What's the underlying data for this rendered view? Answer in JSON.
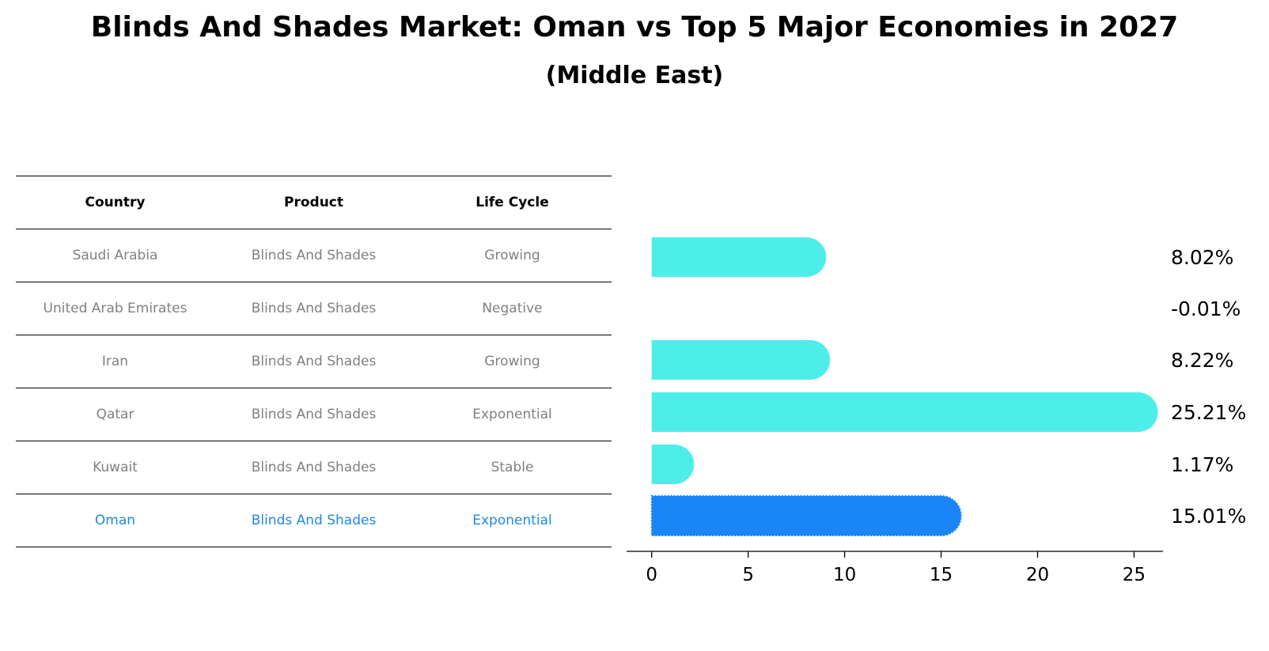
{
  "title": "Blinds And Shades Market: Oman vs Top 5 Major Economies in 2027",
  "subtitle": "(Middle East)",
  "table": {
    "headers": [
      "Country",
      "Product",
      "Life Cycle"
    ],
    "rows": [
      [
        "Saudi Arabia",
        "Blinds And Shades",
        "Growing"
      ],
      [
        "United Arab Emirates",
        "Blinds And Shades",
        "Negative"
      ],
      [
        "Iran",
        "Blinds And Shades",
        "Growing"
      ],
      [
        "Qatar",
        "Blinds And Shades",
        "Exponential"
      ],
      [
        "Kuwait",
        "Blinds And Shades",
        "Stable"
      ],
      [
        "Oman",
        "Blinds And Shades",
        "Exponential"
      ]
    ]
  },
  "chart_data": {
    "type": "bar",
    "orientation": "horizontal",
    "categories": [
      "Saudi Arabia",
      "United Arab Emirates",
      "Iran",
      "Qatar",
      "Kuwait",
      "Oman"
    ],
    "values": [
      8.02,
      -0.01,
      8.22,
      25.21,
      1.17,
      15.01
    ],
    "value_labels": [
      "8.02%",
      "-0.01%",
      "8.22%",
      "25.21%",
      "1.17%",
      "15.01%"
    ],
    "highlight": "Oman",
    "colors": {
      "default": "#4deeea",
      "highlight": "#1a85f7"
    },
    "xticks": [
      0,
      5,
      10,
      15,
      20,
      25
    ],
    "xlim": [
      -1.3,
      26.5
    ],
    "grid": false
  }
}
